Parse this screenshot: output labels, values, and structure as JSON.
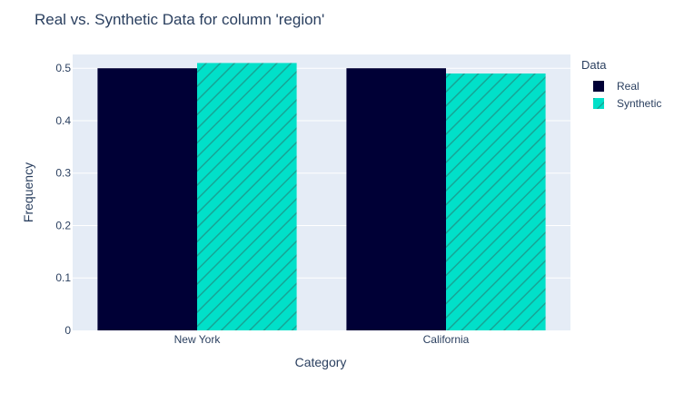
{
  "chart_data": {
    "type": "bar",
    "title": "Real vs. Synthetic Data for column 'region'",
    "xlabel": "Category",
    "ylabel": "Frequency",
    "categories": [
      "New York",
      "California"
    ],
    "ylim": [
      0,
      0.5263
    ],
    "yticks": [
      0,
      0.1,
      0.2,
      0.3,
      0.4,
      0.5
    ],
    "ytick_labels": [
      "0",
      "0.1",
      "0.2",
      "0.3",
      "0.4",
      "0.5"
    ],
    "grid": true,
    "legend_title": "Data",
    "legend_position": "top-right",
    "series": [
      {
        "name": "Real",
        "values": [
          0.5,
          0.5
        ],
        "color": "#000036",
        "pattern": "solid"
      },
      {
        "name": "Synthetic",
        "values": [
          0.51,
          0.49
        ],
        "color": "#01e0c9",
        "pattern": "diagonal-hatch"
      }
    ]
  },
  "colors": {
    "plot_background": "#e5ecf6",
    "grid": "#ffffff",
    "text": "#2a3f5f",
    "hatch": "#17a596"
  }
}
